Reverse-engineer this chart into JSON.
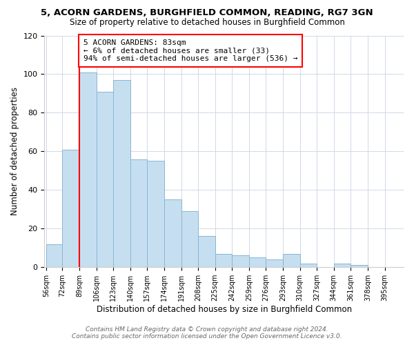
{
  "title1": "5, ACORN GARDENS, BURGHFIELD COMMON, READING, RG7 3GN",
  "title2": "Size of property relative to detached houses in Burghfield Common",
  "xlabel": "Distribution of detached houses by size in Burghfield Common",
  "ylabel": "Number of detached properties",
  "bin_labels": [
    "56sqm",
    "72sqm",
    "89sqm",
    "106sqm",
    "123sqm",
    "140sqm",
    "157sqm",
    "174sqm",
    "191sqm",
    "208sqm",
    "225sqm",
    "242sqm",
    "259sqm",
    "276sqm",
    "293sqm",
    "310sqm",
    "327sqm",
    "344sqm",
    "361sqm",
    "378sqm",
    "395sqm"
  ],
  "bar_heights": [
    12,
    61,
    101,
    91,
    97,
    56,
    55,
    35,
    29,
    16,
    7,
    6,
    5,
    4,
    7,
    2,
    0,
    2,
    1,
    0,
    0
  ],
  "bar_color": "#c5dff0",
  "bar_edge_color": "#8ab4d4",
  "vline_color": "red",
  "vline_x_index": 2,
  "ylim": [
    0,
    120
  ],
  "yticks": [
    0,
    20,
    40,
    60,
    80,
    100,
    120
  ],
  "annotation_title": "5 ACORN GARDENS: 83sqm",
  "annotation_line1": "← 6% of detached houses are smaller (33)",
  "annotation_line2": "94% of semi-detached houses are larger (536) →",
  "annotation_box_color": "#ffffff",
  "annotation_box_edge": "red",
  "footer1": "Contains HM Land Registry data © Crown copyright and database right 2024.",
  "footer2": "Contains public sector information licensed under the Open Government Licence v3.0.",
  "bin_starts": [
    56,
    72,
    89,
    106,
    123,
    140,
    157,
    174,
    191,
    208,
    225,
    242,
    259,
    276,
    293,
    310,
    327,
    344,
    361,
    378,
    395
  ],
  "bin_width": 17
}
